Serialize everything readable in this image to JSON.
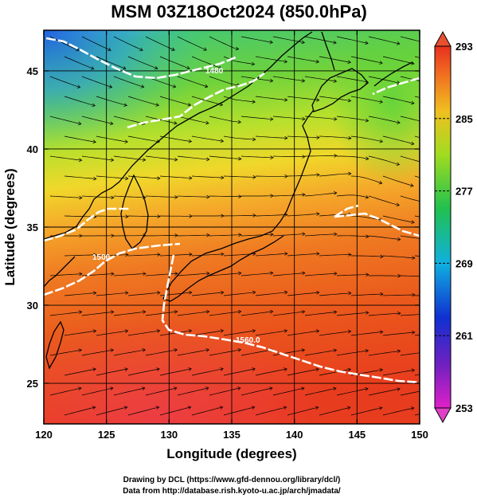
{
  "title": "MSM 03Z18Oct2024 (850.0hPa)",
  "x_axis": {
    "label": "Longitude (degrees)",
    "min": 120,
    "max": 150,
    "ticks": [
      120,
      125,
      130,
      135,
      140,
      145,
      150
    ]
  },
  "y_axis": {
    "label": "Latitude  (degrees)",
    "min": 22.4,
    "max": 47.6,
    "ticks": [
      25,
      30,
      35,
      40,
      45
    ]
  },
  "colorbar": {
    "min": 253,
    "max": 293,
    "labels": [
      253,
      261,
      269,
      277,
      285,
      293
    ]
  },
  "contour_labels": [
    {
      "text": "1480",
      "lon": 128.6,
      "lat": 45.6
    },
    {
      "text": "1500",
      "lon": 124.9,
      "lat": 33.8
    },
    {
      "text": "1560.0",
      "lon": 136.8,
      "lat": 29.4
    }
  ],
  "credits": [
    "Drawing by DCL (https://www.gfd-dennou.org/library/dcl/)",
    "Data from http://database.rish.kyoto-u.ac.jp/arch/jmadata/"
  ],
  "colors": {
    "warm": "#e83c1e",
    "mid": "#f5a82a",
    "cool_green": "#3cc84a",
    "cold_blue": "#1a60d8",
    "contour": "#ffffff",
    "coast": "#000000"
  }
}
